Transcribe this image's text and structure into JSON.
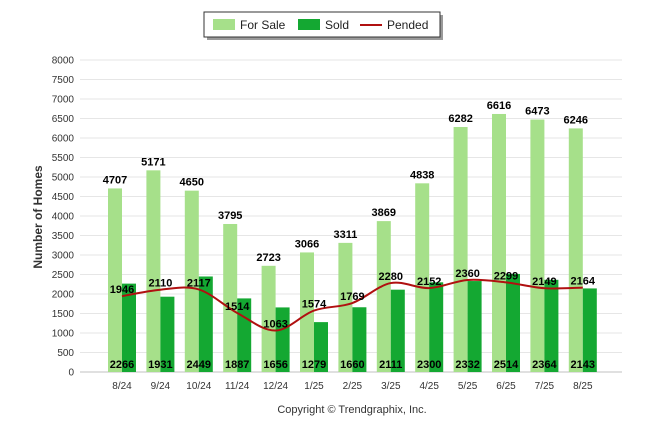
{
  "chart_data": {
    "type": "bar",
    "categories": [
      "8/24",
      "9/24",
      "10/24",
      "11/24",
      "12/24",
      "1/25",
      "2/25",
      "3/25",
      "4/25",
      "5/25",
      "6/25",
      "7/25",
      "8/25"
    ],
    "series": [
      {
        "name": "For Sale",
        "type": "bar",
        "color": "#a6e08a",
        "values": [
          4707,
          5171,
          4650,
          3795,
          2723,
          3066,
          3311,
          3869,
          4838,
          6282,
          6616,
          6473,
          6246
        ]
      },
      {
        "name": "Sold",
        "type": "bar",
        "color": "#14a832",
        "values": [
          2266,
          1931,
          2449,
          1887,
          1656,
          1279,
          1660,
          2111,
          2300,
          2332,
          2514,
          2364,
          2143
        ]
      },
      {
        "name": "Pended",
        "type": "line",
        "color": "#b01010",
        "values": [
          1946,
          2110,
          2117,
          1514,
          1063,
          1574,
          1769,
          2280,
          2152,
          2360,
          2299,
          2149,
          2164
        ]
      }
    ],
    "ylabel": "Number of Homes",
    "xlabel": "",
    "ylim": [
      0,
      8000
    ],
    "yticks": [
      0,
      500,
      1000,
      1500,
      2000,
      2500,
      3000,
      3500,
      4000,
      4500,
      5000,
      5500,
      6000,
      6500,
      7000,
      7500,
      8000
    ],
    "grid": true,
    "legend": "top-center"
  },
  "footer": {
    "copyright": "Copyright © Trendgraphix, Inc."
  }
}
